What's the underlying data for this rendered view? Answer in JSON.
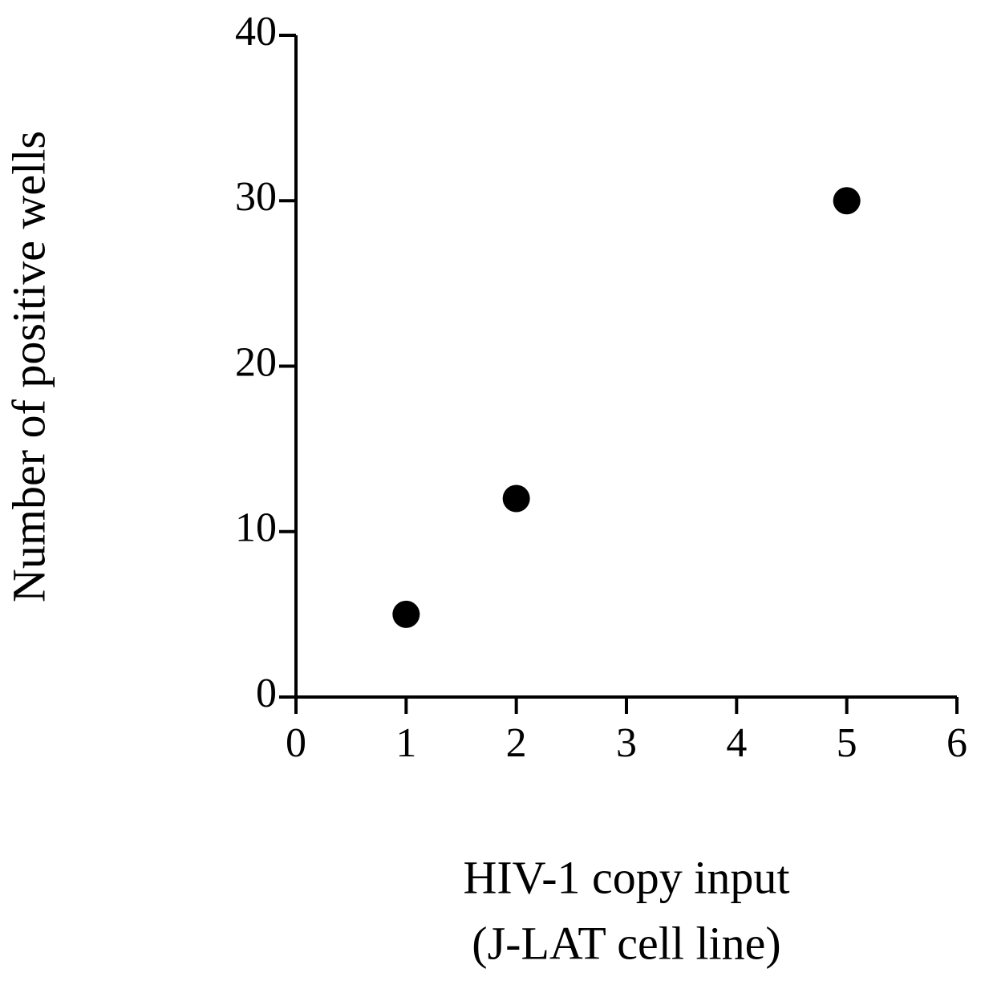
{
  "chart_data": {
    "type": "scatter",
    "x_label": [
      "HIV-1 copy input",
      "(J-LAT cell line)"
    ],
    "y_label": "Number of positive wells",
    "x": [
      1,
      2,
      5
    ],
    "values": [
      5,
      12,
      30
    ],
    "color": "#000000",
    "xlim": [
      0,
      6
    ],
    "xticks": [
      0,
      1,
      2,
      3,
      4,
      5,
      6
    ],
    "ylim": [
      0,
      40
    ],
    "yticks": [
      0,
      10,
      20,
      30,
      40
    ],
    "grid": false
  }
}
